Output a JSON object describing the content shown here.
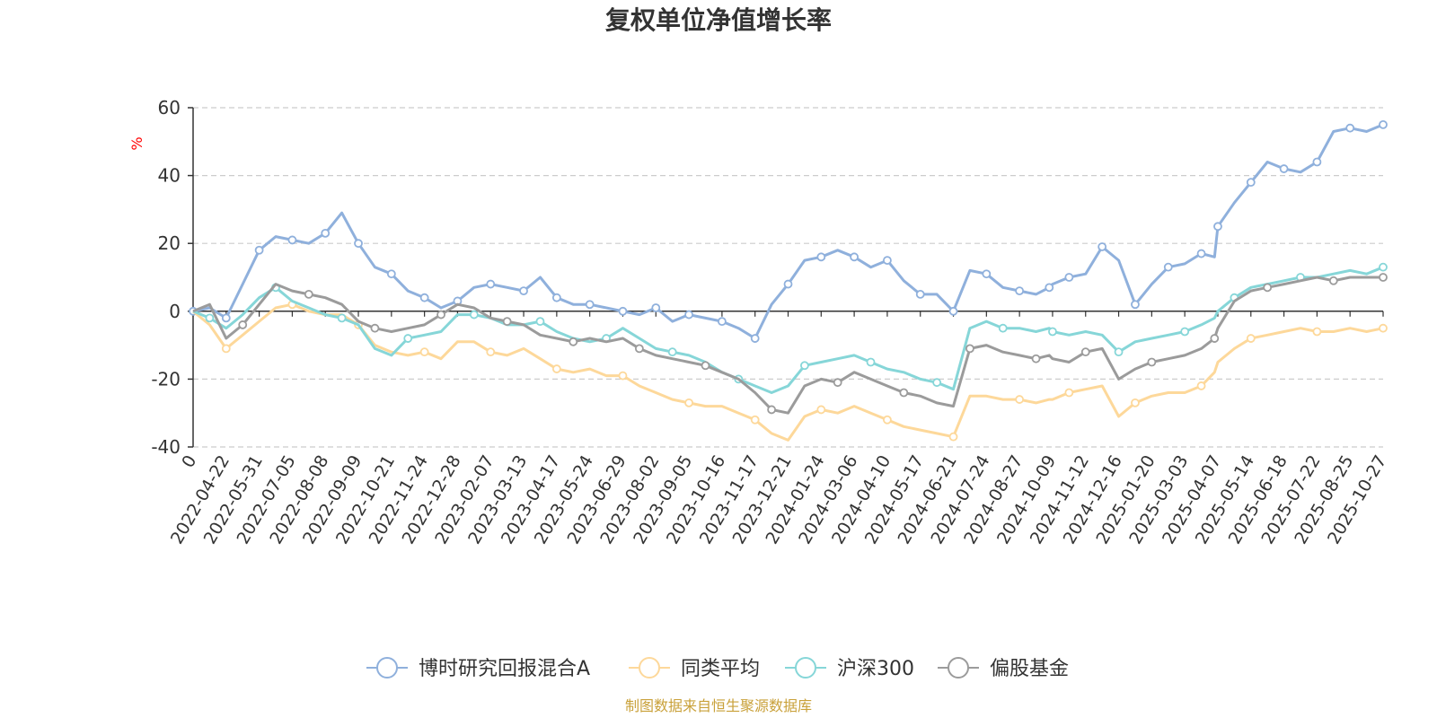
{
  "chart_data": {
    "type": "line",
    "title": "复权单位净值增长率",
    "ylabel": "%",
    "ylim": [
      -40,
      60
    ],
    "yticks": [
      60,
      40,
      20,
      0,
      -20,
      -40
    ],
    "x_tick_labels": [
      "0",
      "2022-04-22",
      "2022-05-31",
      "2022-07-05",
      "2022-08-08",
      "2022-09-09",
      "2022-10-21",
      "2022-11-24",
      "2022-12-28",
      "2023-02-07",
      "2023-03-13",
      "2023-04-17",
      "2023-05-24",
      "2023-06-29",
      "2023-08-02",
      "2023-09-05",
      "2023-10-16",
      "2023-11-17",
      "2023-12-21",
      "2024-01-24",
      "2024-03-06",
      "2024-04-10",
      "2024-05-17",
      "2024-06-21",
      "2024-07-24",
      "2024-08-27",
      "2024-10-09",
      "2024-11-12",
      "2024-12-16",
      "2025-01-20",
      "2025-03-03",
      "2025-04-07",
      "2025-05-14",
      "2025-06-18",
      "2025-07-22",
      "2025-08-25",
      "2025-10-27"
    ],
    "x": [
      0,
      0.5,
      1,
      1.5,
      2,
      2.5,
      3,
      3.5,
      4,
      4.5,
      5,
      5.5,
      6,
      6.5,
      7,
      7.5,
      8,
      8.5,
      9,
      9.5,
      10,
      10.5,
      11,
      11.5,
      12,
      12.5,
      13,
      13.5,
      14,
      14.5,
      15,
      15.5,
      16,
      16.5,
      17,
      17.5,
      18,
      18.5,
      19,
      19.5,
      20,
      20.5,
      21,
      21.5,
      22,
      22.5,
      23,
      23.5,
      24,
      24.5,
      25,
      25.5,
      25.9,
      26,
      26.5,
      27,
      27.5,
      28,
      28.5,
      29,
      29.5,
      30,
      30.5,
      30.9,
      31,
      31.5,
      32,
      32.5,
      33,
      33.5,
      34,
      34.5,
      35,
      35.5,
      36
    ],
    "grid": true,
    "legend_position": "bottom",
    "series": [
      {
        "name": "博时研究回报混合A",
        "color": "#8fb0dc",
        "values": [
          0,
          1,
          -2,
          8,
          18,
          22,
          21,
          20,
          23,
          29,
          20,
          13,
          11,
          6,
          4,
          1,
          3,
          7,
          8,
          7,
          6,
          10,
          4,
          2,
          2,
          1,
          0,
          -1,
          1,
          -3,
          -1,
          -2,
          -3,
          -5,
          -8,
          2,
          8,
          15,
          16,
          18,
          16,
          13,
          15,
          9,
          5,
          5,
          0,
          12,
          11,
          7,
          6,
          5,
          7,
          8,
          10,
          11,
          19,
          15,
          2,
          8,
          13,
          14,
          17,
          16,
          25,
          32,
          38,
          44,
          42,
          41,
          44,
          53,
          54,
          53,
          55
        ]
      },
      {
        "name": "同类平均",
        "color": "#fdd89a",
        "values": [
          0,
          -4,
          -11,
          -7,
          -3,
          1,
          2,
          0,
          -1,
          -1,
          -4,
          -10,
          -12,
          -13,
          -12,
          -14,
          -9,
          -9,
          -12,
          -13,
          -11,
          -14,
          -17,
          -18,
          -17,
          -19,
          -19,
          -22,
          -24,
          -26,
          -27,
          -28,
          -28,
          -30,
          -32,
          -36,
          -38,
          -31,
          -29,
          -30,
          -28,
          -30,
          -32,
          -34,
          -35,
          -36,
          -37,
          -25,
          -25,
          -26,
          -26,
          -27,
          -26,
          -26,
          -24,
          -23,
          -22,
          -31,
          -27,
          -25,
          -24,
          -24,
          -22,
          -18,
          -15,
          -11,
          -8,
          -7,
          -6,
          -5,
          -6,
          -6,
          -5,
          -6,
          -5
        ]
      },
      {
        "name": "沪深300",
        "color": "#86d6d8",
        "values": [
          0,
          -2,
          -5,
          -1,
          4,
          7,
          3,
          1,
          -1,
          -2,
          -4,
          -11,
          -13,
          -8,
          -7,
          -6,
          -1,
          -1,
          -2,
          -4,
          -4,
          -3,
          -6,
          -8,
          -9,
          -8,
          -5,
          -8,
          -11,
          -12,
          -13,
          -15,
          -18,
          -20,
          -22,
          -24,
          -22,
          -16,
          -15,
          -14,
          -13,
          -15,
          -17,
          -18,
          -20,
          -21,
          -23,
          -5,
          -3,
          -5,
          -5,
          -6,
          -5,
          -6,
          -7,
          -6,
          -7,
          -12,
          -9,
          -8,
          -7,
          -6,
          -4,
          -2,
          0,
          4,
          7,
          8,
          9,
          10,
          10,
          11,
          12,
          11,
          13
        ]
      },
      {
        "name": "偏股基金",
        "color": "#9b9b9b",
        "values": [
          0,
          2,
          -8,
          -4,
          2,
          8,
          6,
          5,
          4,
          2,
          -3,
          -5,
          -6,
          -5,
          -4,
          -1,
          2,
          1,
          -2,
          -3,
          -4,
          -7,
          -8,
          -9,
          -8,
          -9,
          -8,
          -11,
          -13,
          -14,
          -15,
          -16,
          -18,
          -20,
          -24,
          -29,
          -30,
          -22,
          -20,
          -21,
          -18,
          -20,
          -22,
          -24,
          -25,
          -27,
          -28,
          -11,
          -10,
          -12,
          -13,
          -14,
          -13,
          -14,
          -15,
          -12,
          -11,
          -20,
          -17,
          -15,
          -14,
          -13,
          -11,
          -8,
          -5,
          3,
          6,
          7,
          8,
          9,
          10,
          9,
          10,
          10,
          10
        ]
      }
    ],
    "markers": {
      "博时研究回报混合A": [
        0,
        2,
        4,
        6,
        8,
        10,
        12,
        14,
        16,
        18,
        20,
        22,
        24,
        26,
        28,
        30,
        32,
        34,
        36,
        38,
        40,
        42,
        44,
        46,
        48,
        50,
        52,
        54,
        56,
        58,
        60,
        62,
        64,
        66,
        68,
        70,
        72,
        74
      ],
      "同类平均": [
        2,
        6,
        10,
        14,
        18,
        22,
        26,
        30,
        34,
        38,
        42,
        46,
        50,
        54,
        58,
        62,
        66,
        70,
        74
      ],
      "沪深300": [
        1,
        5,
        9,
        13,
        17,
        21,
        25,
        29,
        33,
        37,
        41,
        45,
        49,
        53,
        57,
        61,
        65,
        69,
        74
      ],
      "偏股基金": [
        3,
        7,
        11,
        15,
        19,
        23,
        27,
        31,
        35,
        39,
        43,
        47,
        51,
        55,
        59,
        63,
        67,
        71,
        74
      ]
    }
  },
  "footer": {
    "source": "制图数据来自恒生聚源数据库",
    "source_color": "#c9a13a"
  },
  "ylabel_color": "#ff0000"
}
